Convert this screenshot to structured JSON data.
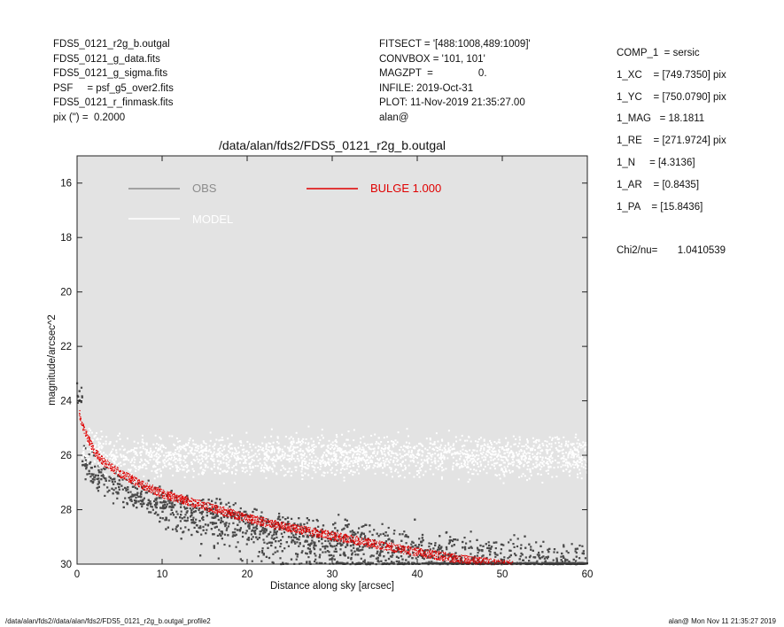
{
  "header_left": [
    "FDS5_0121_r2g_b.outgal",
    "FDS5_0121_g_data.fits",
    "FDS5_0121_g_sigma.fits",
    "PSF     = psf_g5_over2.fits",
    "FDS5_0121_r_finmask.fits",
    "pix (\") =  0.2000"
  ],
  "header_mid": [
    "FITSECT = '[488:1008,489:1009]'",
    "CONVBOX = '101, 101'",
    "MAGZPT  =                0.",
    "INFILE: 2019-Oct-31",
    "PLOT: 11-Nov-2019 21:35:27.00",
    "alan@"
  ],
  "header_right": [
    "COMP_1  = sersic",
    "1_XC    = [749.7350] pix",
    "1_YC    = [750.0790] pix",
    "1_MAG   = 18.1811",
    "1_RE    = [271.9724] pix",
    "1_N     = [4.3136]",
    "1_AR    = [0.8435]",
    "1_PA    = [15.8436]",
    "",
    "Chi2/nu=       1.0410539"
  ],
  "footer": {
    "left": "/data/alan/fds2//data/alan/fds2/FDS5_0121_r2g_b.outgal_profile2",
    "right": "alan@  Mon Nov 11 21:35:27 2019"
  },
  "colors": {
    "panel_bg": "#e3e3e3",
    "obs": "#4a4a4a",
    "model": "#ffffff",
    "bulge": "#e00000",
    "obs_legend": "#8c8c8c"
  },
  "chart_data": {
    "type": "scatter",
    "title": "/data/alan/fds2/FDS5_0121_r2g_b.outgal",
    "xlabel": "Distance along sky [arcsec]",
    "ylabel": "magnitude/arcsec^2",
    "xlim": [
      0,
      60
    ],
    "ylim": [
      30,
      15
    ],
    "y_inverted": true,
    "xticks": [
      0,
      10,
      20,
      30,
      40,
      50,
      60
    ],
    "yticks": [
      16,
      18,
      20,
      22,
      24,
      26,
      28,
      30
    ],
    "legend": [
      {
        "name": "OBS",
        "style": "gray line"
      },
      {
        "name": "MODEL",
        "style": "white line"
      },
      {
        "name": "BULGE  1.000",
        "style": "red line"
      }
    ],
    "series": [
      {
        "name": "BULGE  1.000",
        "type": "line",
        "x": [
          0.2,
          0.5,
          1,
          2,
          3,
          5,
          7.5,
          10,
          15,
          20,
          25,
          30,
          35,
          40,
          45,
          50,
          51
        ],
        "y": [
          24.4,
          24.8,
          25.2,
          25.85,
          26.2,
          26.65,
          27.05,
          27.4,
          27.85,
          28.3,
          28.65,
          28.95,
          29.25,
          29.55,
          29.8,
          30.0,
          30.0
        ]
      },
      {
        "name": "MODEL",
        "type": "scatter",
        "description": "white points, band roughly 25.3 to 27.2 mag across 0-60 arcsec",
        "y_range": [
          25.0,
          27.5
        ]
      },
      {
        "name": "OBS",
        "type": "scatter",
        "description": "dark gray points, spread from ~24 mag near center to ~30 mag at large radii",
        "x_range": [
          0,
          60
        ],
        "y_range": [
          23.3,
          30
        ]
      }
    ]
  }
}
